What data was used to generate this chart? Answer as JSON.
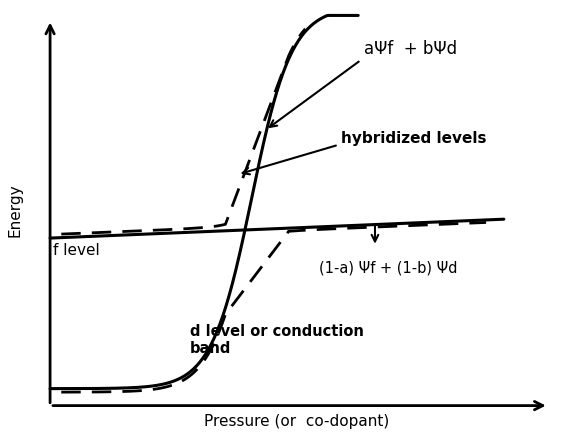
{
  "xlabel": "Pressure (or  co-dopant)",
  "ylabel": "Energy",
  "background_color": "#ffffff",
  "text_color": "#000000",
  "label_f_level": "f level",
  "label_d_level": "d level or conduction\nband",
  "label_hybridized": "hybridized levels",
  "label_upper_hybrid": "aΨf  + bΨd",
  "label_lower_hybrid": "(1-a) Ψf + (1-b) Ψd",
  "figsize": [
    5.78,
    4.38
  ],
  "dpi": 100
}
